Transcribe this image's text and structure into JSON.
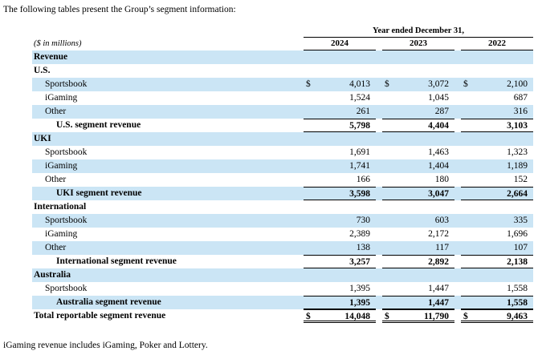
{
  "intro_text": "The following tables present the Group’s segment information:",
  "footnote": "iGaming revenue includes iGaming, Poker and Lottery.",
  "colors": {
    "row_highlight": "#cbe5f5"
  },
  "table": {
    "period_header": "Year ended December 31,",
    "units_label": "($ in millions)",
    "currency_symbol": "$",
    "years": [
      "2024",
      "2023",
      "2022"
    ],
    "rows": [
      {
        "label": "Revenue",
        "indent": 0,
        "bold": true,
        "shaded": true,
        "values": null,
        "dollar": false,
        "rule": ""
      },
      {
        "label": "U.S.",
        "indent": 0,
        "bold": true,
        "shaded": false,
        "values": null,
        "dollar": false,
        "rule": ""
      },
      {
        "label": "Sportsbook",
        "indent": 1,
        "bold": false,
        "shaded": true,
        "values": [
          "4,013",
          "3,072",
          "2,100"
        ],
        "dollar": true,
        "rule": ""
      },
      {
        "label": "iGaming",
        "indent": 1,
        "bold": false,
        "shaded": false,
        "values": [
          "1,524",
          "1,045",
          "687"
        ],
        "dollar": false,
        "rule": ""
      },
      {
        "label": "Other",
        "indent": 1,
        "bold": false,
        "shaded": true,
        "values": [
          "261",
          "287",
          "316"
        ],
        "dollar": false,
        "rule": ""
      },
      {
        "label": "U.S. segment revenue",
        "indent": 2,
        "bold": true,
        "shaded": false,
        "values": [
          "5,798",
          "4,404",
          "3,103"
        ],
        "dollar": false,
        "rule": "subtotal"
      },
      {
        "label": "UKI",
        "indent": 0,
        "bold": true,
        "shaded": true,
        "values": null,
        "dollar": false,
        "rule": ""
      },
      {
        "label": "Sportsbook",
        "indent": 1,
        "bold": false,
        "shaded": false,
        "values": [
          "1,691",
          "1,463",
          "1,323"
        ],
        "dollar": false,
        "rule": ""
      },
      {
        "label": "iGaming",
        "indent": 1,
        "bold": false,
        "shaded": true,
        "values": [
          "1,741",
          "1,404",
          "1,189"
        ],
        "dollar": false,
        "rule": ""
      },
      {
        "label": "Other",
        "indent": 1,
        "bold": false,
        "shaded": false,
        "values": [
          "166",
          "180",
          "152"
        ],
        "dollar": false,
        "rule": ""
      },
      {
        "label": "UKI segment revenue",
        "indent": 2,
        "bold": true,
        "shaded": true,
        "values": [
          "3,598",
          "3,047",
          "2,664"
        ],
        "dollar": false,
        "rule": "subtotal"
      },
      {
        "label": "International",
        "indent": 0,
        "bold": true,
        "shaded": false,
        "values": null,
        "dollar": false,
        "rule": ""
      },
      {
        "label": "Sportsbook",
        "indent": 1,
        "bold": false,
        "shaded": true,
        "values": [
          "730",
          "603",
          "335"
        ],
        "dollar": false,
        "rule": ""
      },
      {
        "label": "iGaming",
        "indent": 1,
        "bold": false,
        "shaded": false,
        "values": [
          "2,389",
          "2,172",
          "1,696"
        ],
        "dollar": false,
        "rule": ""
      },
      {
        "label": "Other",
        "indent": 1,
        "bold": false,
        "shaded": true,
        "values": [
          "138",
          "117",
          "107"
        ],
        "dollar": false,
        "rule": ""
      },
      {
        "label": "International segment revenue",
        "indent": 2,
        "bold": true,
        "shaded": false,
        "values": [
          "3,257",
          "2,892",
          "2,138"
        ],
        "dollar": false,
        "rule": "subtotal"
      },
      {
        "label": "Australia",
        "indent": 0,
        "bold": true,
        "shaded": true,
        "values": null,
        "dollar": false,
        "rule": ""
      },
      {
        "label": "Sportsbook",
        "indent": 1,
        "bold": false,
        "shaded": false,
        "values": [
          "1,395",
          "1,447",
          "1,558"
        ],
        "dollar": false,
        "rule": ""
      },
      {
        "label": "Australia segment revenue",
        "indent": 2,
        "bold": true,
        "shaded": true,
        "values": [
          "1,395",
          "1,447",
          "1,558"
        ],
        "dollar": false,
        "rule": "subtotal"
      },
      {
        "label": "Total reportable segment revenue",
        "indent": 0,
        "bold": true,
        "shaded": false,
        "values": [
          "14,048",
          "11,790",
          "9,463"
        ],
        "dollar": true,
        "rule": "total"
      }
    ]
  }
}
